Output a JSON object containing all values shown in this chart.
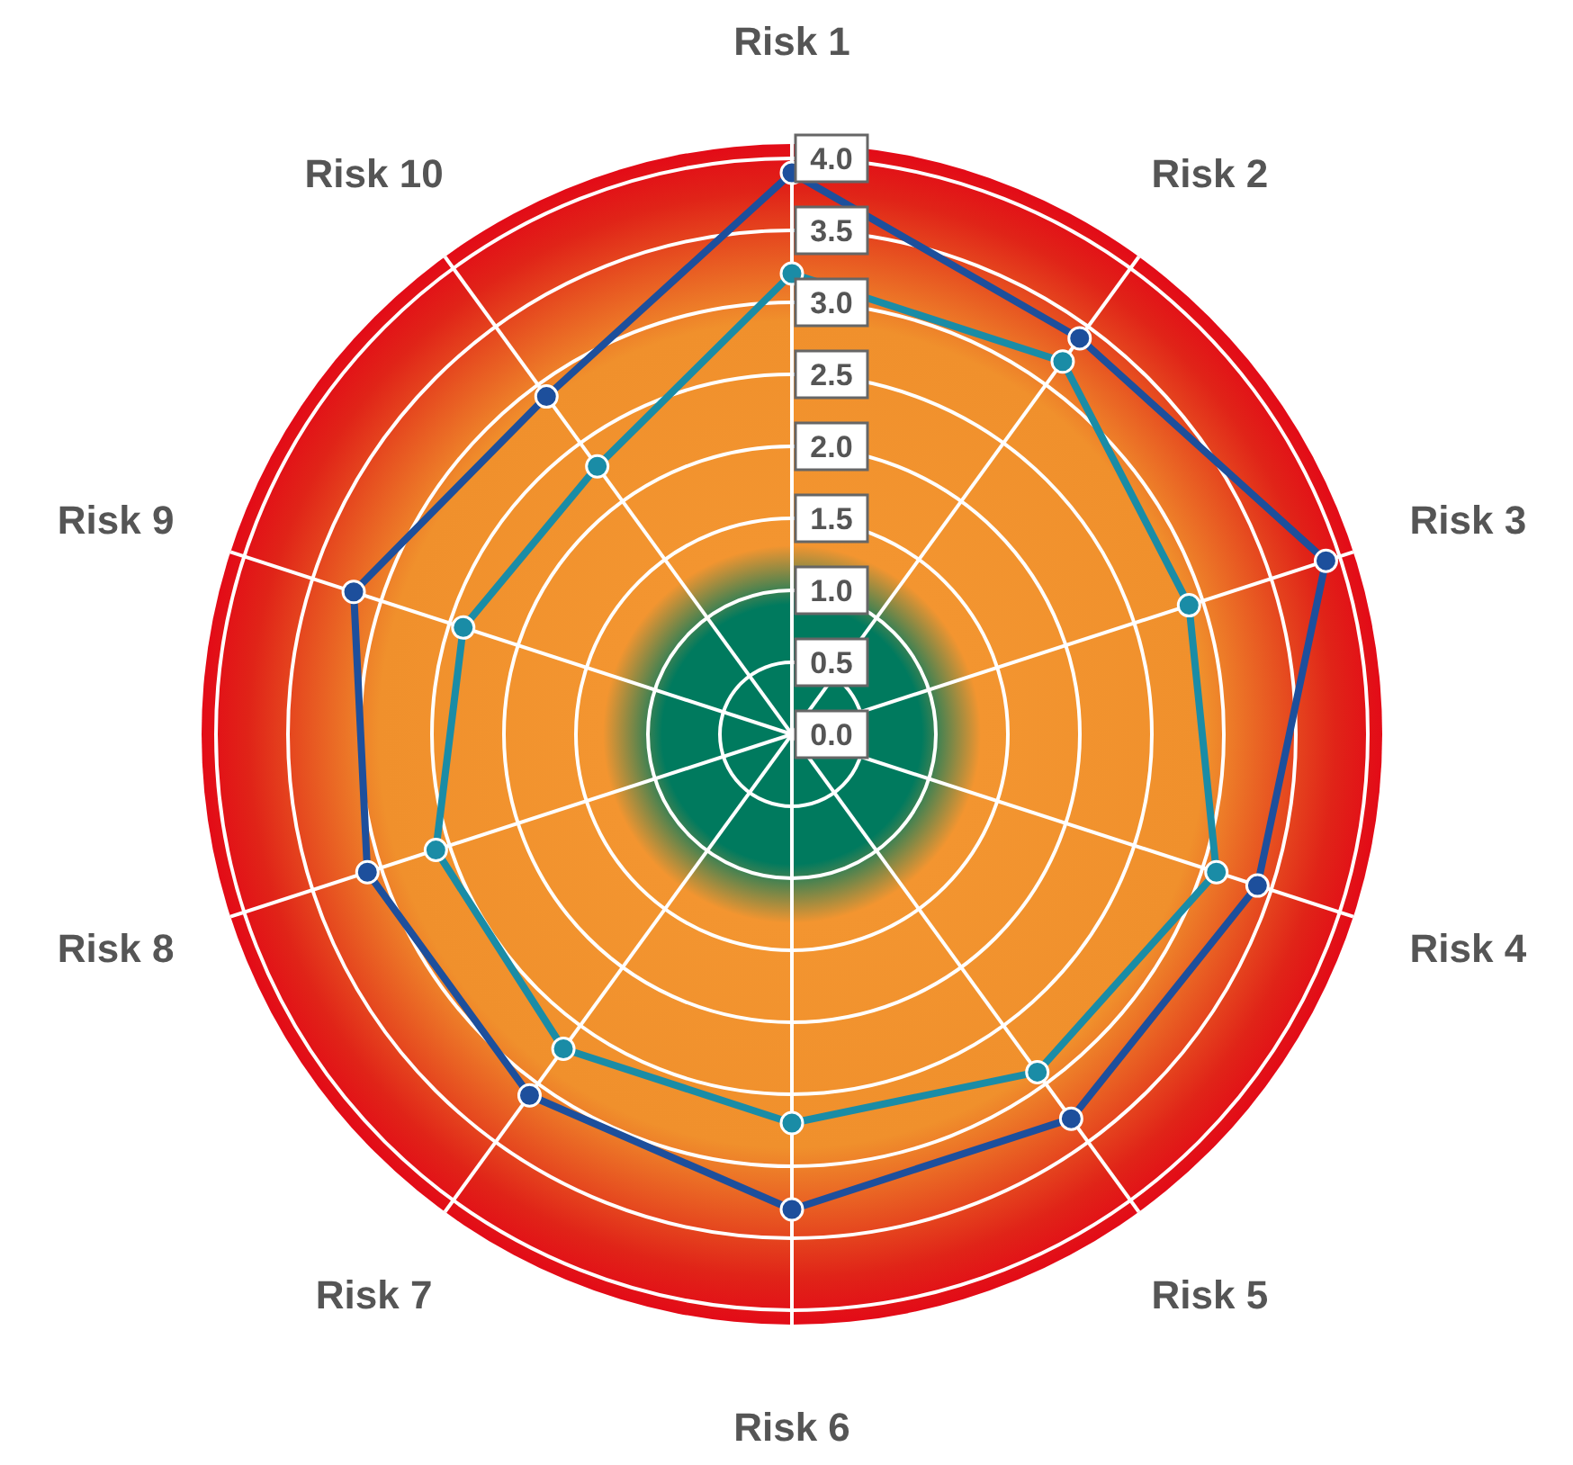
{
  "chart_data": {
    "type": "radar",
    "categories": [
      "Risk 1",
      "Risk 2",
      "Risk 3",
      "Risk 4",
      "Risk 5",
      "Risk 6",
      "Risk 7",
      "Risk 8",
      "Risk 9",
      "Risk 10"
    ],
    "series": [
      {
        "color": "#1d4f9c",
        "values": [
          3.9,
          3.4,
          3.9,
          3.4,
          3.3,
          3.3,
          3.1,
          3.1,
          3.2,
          2.9
        ]
      },
      {
        "color": "#1a8ca6",
        "values": [
          3.2,
          3.2,
          2.9,
          3.1,
          2.9,
          2.7,
          2.7,
          2.6,
          2.4,
          2.3
        ]
      }
    ],
    "ylim": [
      0,
      4.1
    ],
    "yticks": [
      {
        "value": 0,
        "label": "0.0"
      },
      {
        "value": 0.5,
        "label": "0.5"
      },
      {
        "value": 1,
        "label": "1.0"
      },
      {
        "value": 1.5,
        "label": "1.5"
      },
      {
        "value": 2,
        "label": "2.0"
      },
      {
        "value": 2.5,
        "label": "2.5"
      },
      {
        "value": 3,
        "label": "3.0"
      },
      {
        "value": 3.5,
        "label": "3.5"
      },
      {
        "value": 4,
        "label": "4.0"
      }
    ],
    "grid": true,
    "marker": "circle",
    "line_style": "solid"
  }
}
